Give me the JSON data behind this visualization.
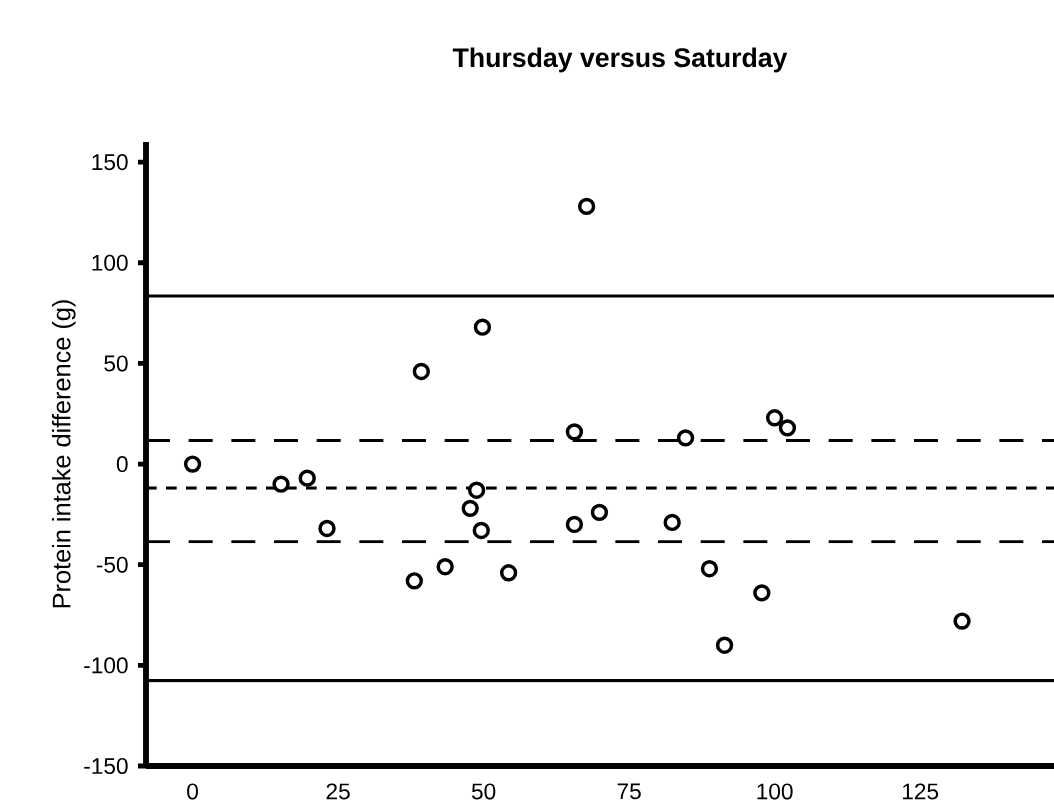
{
  "chart_data": {
    "type": "scatter",
    "title": "Thursday versus Saturday",
    "ylabel": "Protein intake difference (g)",
    "x": [
      0,
      15.2,
      19.7,
      23.1,
      38.1,
      39.3,
      43.4,
      47.7,
      48.8,
      49.6,
      49.8,
      54.3,
      65.6,
      65.6,
      67.7,
      69.9,
      82.4,
      84.7,
      88.8,
      91.4,
      97.8,
      100,
      102.2,
      132.2
    ],
    "values": [
      0,
      -10,
      -7,
      -32,
      -58,
      46,
      -51,
      -22,
      -13,
      -33,
      68,
      -54,
      16,
      -30,
      128,
      -24,
      -29,
      13,
      -52,
      -90,
      -64,
      23,
      18,
      -78
    ],
    "color": "#000000",
    "marker": "circle",
    "grid": false,
    "xlim": [
      -8,
      148
    ],
    "xticks": [
      0,
      25,
      50,
      75,
      100,
      125
    ],
    "ylim": [
      -150,
      160
    ],
    "yticks": [
      -150,
      -100,
      -50,
      0,
      50,
      100,
      150
    ],
    "ref_lines": [
      {
        "axis": "y",
        "value": 83.5,
        "line_style": "solid"
      },
      {
        "axis": "y",
        "value": 11.7,
        "line_style": "dashed"
      },
      {
        "axis": "y",
        "value": -12,
        "line_style": "dotted"
      },
      {
        "axis": "y",
        "value": -38.6,
        "line_style": "dashed"
      },
      {
        "axis": "y",
        "value": -107.6,
        "line_style": "solid"
      }
    ]
  }
}
